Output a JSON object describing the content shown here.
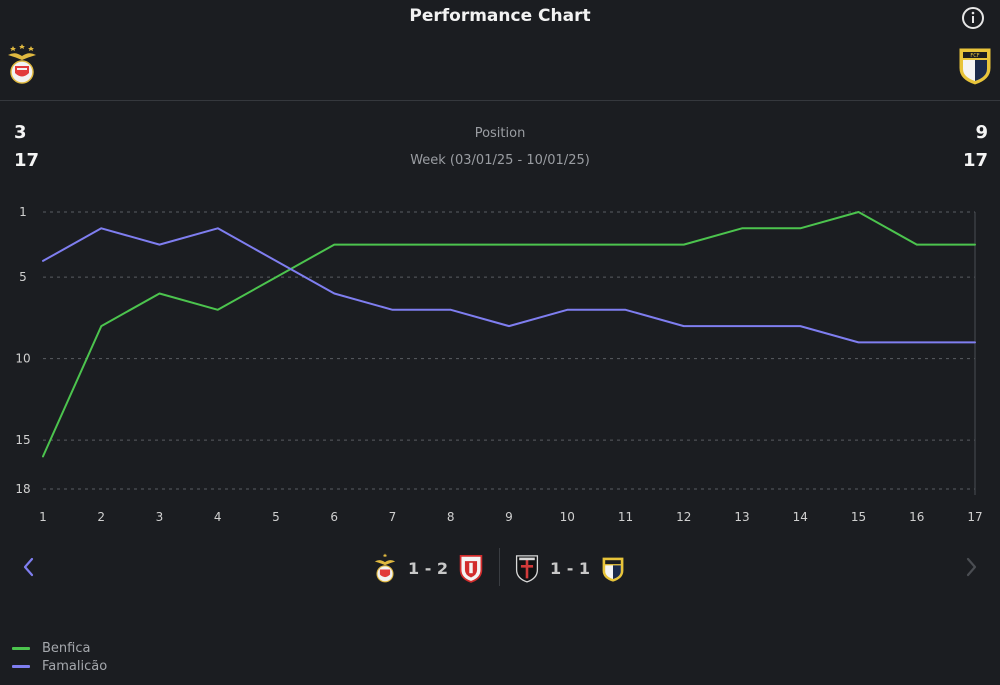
{
  "header": {
    "title": "Performance Chart",
    "info_icon": "info-icon"
  },
  "teams": {
    "home": {
      "name": "Benfica",
      "crest": "benfica-crest-icon",
      "color": "#4cc44e",
      "stat_top": "3",
      "stat_bottom": "17"
    },
    "away": {
      "name": "Famalicão",
      "crest": "famalicao-crest-icon",
      "color": "#7f7ef0",
      "stat_top": "9",
      "stat_bottom": "17"
    }
  },
  "center": {
    "position_label": "Position",
    "week_label": "Week (03/01/25 - 10/01/25)"
  },
  "chart_data": {
    "type": "line",
    "title": "Performance Chart",
    "xlabel": "",
    "ylabel": "",
    "x": [
      1,
      2,
      3,
      4,
      5,
      6,
      7,
      8,
      9,
      10,
      11,
      12,
      13,
      14,
      15,
      16,
      17
    ],
    "ylim": [
      18,
      1
    ],
    "y_reversed": true,
    "yticks": [
      1,
      5,
      10,
      15,
      18
    ],
    "grid": true,
    "series": [
      {
        "name": "Benfica",
        "color": "#4cc44e",
        "values": [
          16,
          8,
          6,
          7,
          5,
          3,
          3,
          3,
          3,
          3,
          3,
          3,
          2,
          2,
          1,
          3,
          3
        ]
      },
      {
        "name": "Famalicão",
        "color": "#7f7ef0",
        "values": [
          4,
          2,
          3,
          2,
          4,
          6,
          7,
          7,
          8,
          7,
          7,
          8,
          8,
          8,
          9,
          9,
          9
        ]
      }
    ],
    "legend": "bottom-left"
  },
  "matches": {
    "left": {
      "home_crest": "benfica-crest-icon",
      "score": "1 - 2",
      "away_crest": "braga-crest-icon"
    },
    "right": {
      "home_crest": "casa-pia-crest-icon",
      "score": "1 - 1",
      "away_crest": "famalicao-crest-icon"
    }
  },
  "nav": {
    "prev": "chevron-left-icon",
    "next": "chevron-right-icon"
  },
  "legend": [
    {
      "label": "Benfica",
      "color": "#4cc44e"
    },
    {
      "label": "Famalicão",
      "color": "#7f7ef0"
    }
  ]
}
